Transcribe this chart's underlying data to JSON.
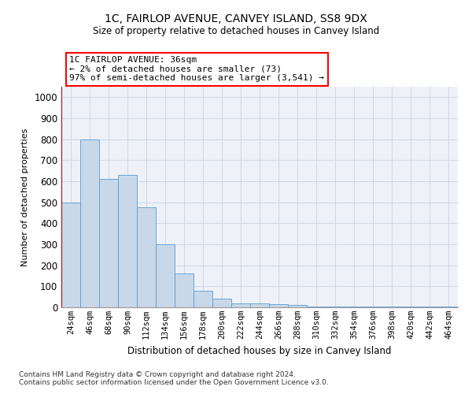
{
  "title": "1C, FAIRLOP AVENUE, CANVEY ISLAND, SS8 9DX",
  "subtitle": "Size of property relative to detached houses in Canvey Island",
  "xlabel": "Distribution of detached houses by size in Canvey Island",
  "ylabel": "Number of detached properties",
  "footnote1": "Contains HM Land Registry data © Crown copyright and database right 2024.",
  "footnote2": "Contains public sector information licensed under the Open Government Licence v3.0.",
  "annotation_title": "1C FAIRLOP AVENUE: 36sqm",
  "annotation_line2": "← 2% of detached houses are smaller (73)",
  "annotation_line3": "97% of semi-detached houses are larger (3,541) →",
  "bar_color": "#c8d8e8",
  "bar_edge_color": "#5b9bd5",
  "highlight_line_color": "#cc0000",
  "categories": [
    "24sqm",
    "46sqm",
    "68sqm",
    "90sqm",
    "112sqm",
    "134sqm",
    "156sqm",
    "178sqm",
    "200sqm",
    "222sqm",
    "244sqm",
    "266sqm",
    "288sqm",
    "310sqm",
    "332sqm",
    "354sqm",
    "376sqm",
    "398sqm",
    "420sqm",
    "442sqm",
    "464sqm"
  ],
  "values": [
    500,
    800,
    610,
    630,
    475,
    300,
    160,
    78,
    42,
    20,
    20,
    15,
    10,
    5,
    5,
    5,
    5,
    5,
    5,
    5,
    5
  ],
  "ylim": [
    0,
    1050
  ],
  "yticks": [
    0,
    100,
    200,
    300,
    400,
    500,
    600,
    700,
    800,
    900,
    1000
  ],
  "grid_color": "#d0d8e8",
  "background_color": "#eef2f8"
}
